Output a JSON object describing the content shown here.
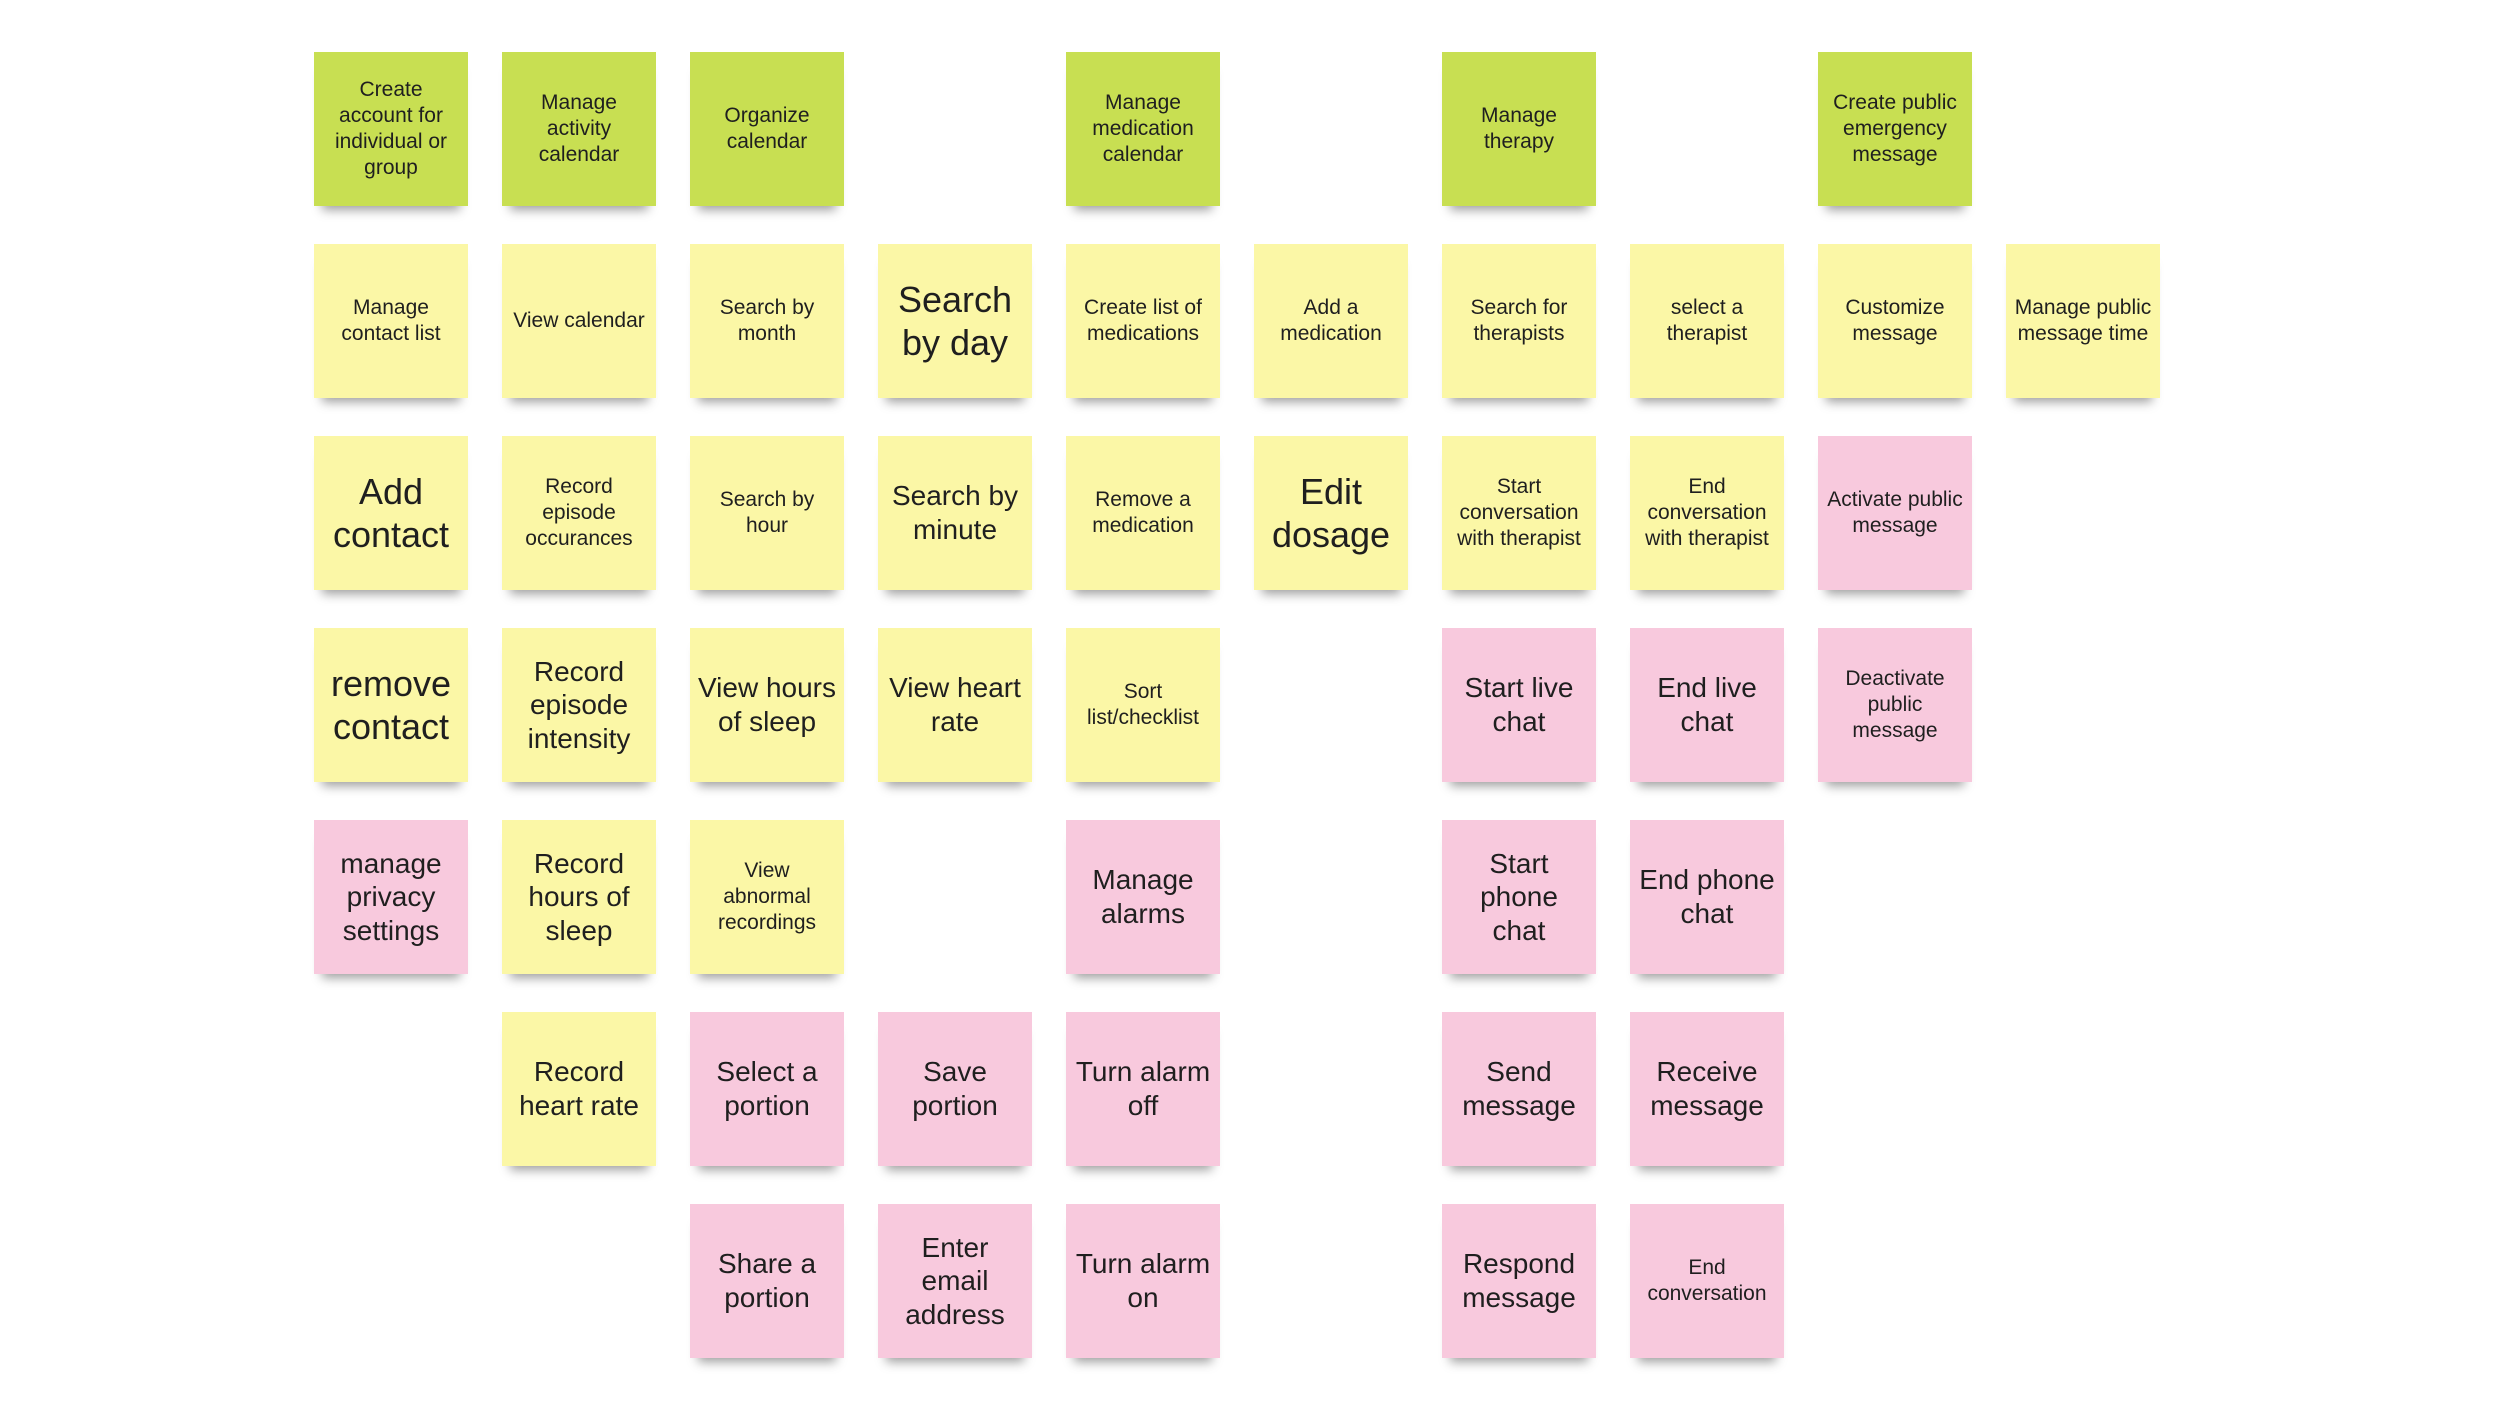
{
  "colors": {
    "green": "#c8df52",
    "yellow": "#fbf7a6",
    "pink": "#f8c9dd"
  },
  "columns": [
    {
      "notes": [
        {
          "row": 0,
          "text": "Create account for individual or group",
          "color": "green",
          "size": "s"
        },
        {
          "row": 1,
          "text": "Manage contact list",
          "color": "yellow",
          "size": "s"
        },
        {
          "row": 2,
          "text": "Add contact",
          "color": "yellow",
          "size": "l"
        },
        {
          "row": 3,
          "text": "remove contact",
          "color": "yellow",
          "size": "l"
        },
        {
          "row": 4,
          "text": "manage privacy settings",
          "color": "pink",
          "size": "m"
        }
      ]
    },
    {
      "notes": [
        {
          "row": 0,
          "text": "Manage activity calendar",
          "color": "green",
          "size": "s"
        },
        {
          "row": 1,
          "text": "View calendar",
          "color": "yellow",
          "size": "s"
        },
        {
          "row": 2,
          "text": "Record episode occurances",
          "color": "yellow",
          "size": "s"
        },
        {
          "row": 3,
          "text": "Record episode intensity",
          "color": "yellow",
          "size": "m"
        },
        {
          "row": 4,
          "text": "Record hours of sleep",
          "color": "yellow",
          "size": "m"
        },
        {
          "row": 5,
          "text": "Record heart rate",
          "color": "yellow",
          "size": "m"
        }
      ]
    },
    {
      "notes": [
        {
          "row": 0,
          "text": "Organize calendar",
          "color": "green",
          "size": "s"
        },
        {
          "row": 1,
          "text": "Search by month",
          "color": "yellow",
          "size": "s"
        },
        {
          "row": 2,
          "text": "Search by hour",
          "color": "yellow",
          "size": "s"
        },
        {
          "row": 3,
          "text": "View hours of sleep",
          "color": "yellow",
          "size": "m"
        },
        {
          "row": 4,
          "text": "View abnormal recordings",
          "color": "yellow",
          "size": "s"
        },
        {
          "row": 5,
          "text": "Select a portion",
          "color": "pink",
          "size": "m"
        },
        {
          "row": 6,
          "text": "Share a portion",
          "color": "pink",
          "size": "m"
        }
      ]
    },
    {
      "notes": [
        {
          "row": 1,
          "text": "Search by day",
          "color": "yellow",
          "size": "l"
        },
        {
          "row": 2,
          "text": "Search by minute",
          "color": "yellow",
          "size": "m"
        },
        {
          "row": 3,
          "text": "View heart rate",
          "color": "yellow",
          "size": "m"
        },
        {
          "row": 5,
          "text": "Save portion",
          "color": "pink",
          "size": "m"
        },
        {
          "row": 6,
          "text": "Enter email address",
          "color": "pink",
          "size": "m"
        }
      ]
    },
    {
      "notes": [
        {
          "row": 0,
          "text": "Manage medication calendar",
          "color": "green",
          "size": "s"
        },
        {
          "row": 1,
          "text": "Create list of medications",
          "color": "yellow",
          "size": "s"
        },
        {
          "row": 2,
          "text": "Remove a medication",
          "color": "yellow",
          "size": "s"
        },
        {
          "row": 3,
          "text": "Sort list/checklist",
          "color": "yellow",
          "size": "s"
        },
        {
          "row": 4,
          "text": "Manage alarms",
          "color": "pink",
          "size": "m"
        },
        {
          "row": 5,
          "text": "Turn alarm off",
          "color": "pink",
          "size": "m"
        },
        {
          "row": 6,
          "text": "Turn alarm on",
          "color": "pink",
          "size": "m"
        }
      ]
    },
    {
      "notes": [
        {
          "row": 1,
          "text": "Add a medication",
          "color": "yellow",
          "size": "s"
        },
        {
          "row": 2,
          "text": "Edit dosage",
          "color": "yellow",
          "size": "l"
        }
      ]
    },
    {
      "notes": [
        {
          "row": 0,
          "text": "Manage therapy",
          "color": "green",
          "size": "s"
        },
        {
          "row": 1,
          "text": "Search for therapists",
          "color": "yellow",
          "size": "s"
        },
        {
          "row": 2,
          "text": "Start conversation with therapist",
          "color": "yellow",
          "size": "s"
        },
        {
          "row": 3,
          "text": "Start live chat",
          "color": "pink",
          "size": "m"
        },
        {
          "row": 4,
          "text": "Start phone chat",
          "color": "pink",
          "size": "m"
        },
        {
          "row": 5,
          "text": "Send message",
          "color": "pink",
          "size": "m"
        },
        {
          "row": 6,
          "text": "Respond message",
          "color": "pink",
          "size": "m"
        }
      ]
    },
    {
      "notes": [
        {
          "row": 1,
          "text": "select a therapist",
          "color": "yellow",
          "size": "s"
        },
        {
          "row": 2,
          "text": "End conversation with therapist",
          "color": "yellow",
          "size": "s"
        },
        {
          "row": 3,
          "text": "End live chat",
          "color": "pink",
          "size": "m"
        },
        {
          "row": 4,
          "text": "End phone chat",
          "color": "pink",
          "size": "m"
        },
        {
          "row": 5,
          "text": "Receive message",
          "color": "pink",
          "size": "m"
        },
        {
          "row": 6,
          "text": "End conversation",
          "color": "pink",
          "size": "s"
        }
      ]
    },
    {
      "notes": [
        {
          "row": 0,
          "text": "Create public emergency message",
          "color": "green",
          "size": "s"
        },
        {
          "row": 1,
          "text": "Customize message",
          "color": "yellow",
          "size": "s"
        },
        {
          "row": 2,
          "text": "Activate public message",
          "color": "pink",
          "size": "s"
        },
        {
          "row": 3,
          "text": "Deactivate public message",
          "color": "pink",
          "size": "s"
        }
      ]
    },
    {
      "notes": [
        {
          "row": 1,
          "text": "Manage public message time",
          "color": "yellow",
          "size": "s"
        }
      ]
    }
  ]
}
